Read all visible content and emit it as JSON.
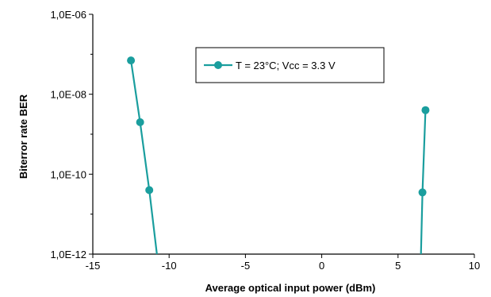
{
  "chart_data": {
    "type": "line",
    "xlabel": "Average optical input power (dBm)",
    "ylabel": "Biterror rate BER",
    "xlim": [
      -15,
      10
    ],
    "ylim": [
      1e-12,
      1e-06
    ],
    "y_scale": "log",
    "x_ticks": [
      -15,
      -10,
      -5,
      0,
      5,
      10
    ],
    "x_tick_labels": [
      "-15",
      "-10",
      "-5",
      "0",
      "5",
      "10"
    ],
    "y_ticks": [
      1e-12,
      1e-10,
      1e-08,
      1e-06
    ],
    "y_tick_labels": [
      "1,0E-12",
      "1,0E-10",
      "1,0E-08",
      "1,0E-06"
    ],
    "grid": false,
    "legend_position": "top-right",
    "series": [
      {
        "name": "T = 23°C;  Vcc = 3.3 V",
        "color": "#1a9e9e",
        "segments": [
          {
            "points": [
              [
                -12.5,
                7e-08
              ],
              [
                -11.9,
                2e-09
              ],
              [
                -11.3,
                4e-11
              ]
            ],
            "line_to": [
              -10.8,
              1e-12
            ]
          },
          {
            "points": [
              [
                6.6,
                3.5e-11
              ],
              [
                6.8,
                4e-09
              ]
            ],
            "line_from": [
              6.5,
              1e-12
            ]
          }
        ]
      }
    ]
  }
}
